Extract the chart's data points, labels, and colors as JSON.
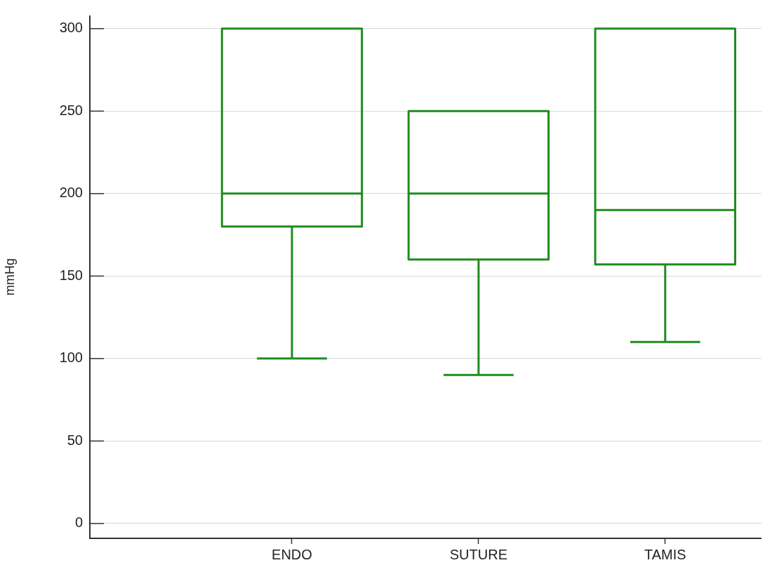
{
  "chart_data": {
    "type": "box",
    "ylabel": "mmHg",
    "categories": [
      "ENDO",
      "SUTURE",
      "TAMIS"
    ],
    "boxes": [
      {
        "low": 100,
        "q1": 180,
        "median": 200,
        "q3": 300,
        "high": 300
      },
      {
        "low": 90,
        "q1": 160,
        "median": 200,
        "q3": 250,
        "high": 250
      },
      {
        "low": 110,
        "q1": 157,
        "median": 190,
        "q3": 300,
        "high": 300
      }
    ],
    "color": "#1e8c1e",
    "ylim": [
      -9,
      308
    ],
    "yticks": [
      0,
      50,
      100,
      150,
      200,
      250,
      300
    ],
    "grid": "y",
    "legend": false
  }
}
